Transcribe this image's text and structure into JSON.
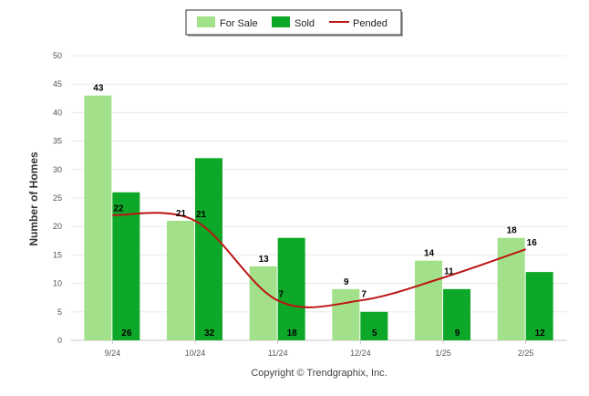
{
  "chart_data": {
    "type": "bar",
    "title": "",
    "xlabel": "",
    "ylabel": "Number of Homes",
    "ylim": [
      0,
      50
    ],
    "yticks": [
      0,
      5,
      10,
      15,
      20,
      25,
      30,
      35,
      40,
      45,
      50
    ],
    "grid": true,
    "legend_position": "top-center",
    "categories": [
      "9/24",
      "10/24",
      "11/24",
      "12/24",
      "1/25",
      "2/25"
    ],
    "series": [
      {
        "name": "For Sale",
        "kind": "bar",
        "color": "#a3e08a",
        "values": [
          43,
          21,
          13,
          9,
          14,
          18
        ]
      },
      {
        "name": "Sold",
        "kind": "bar",
        "color": "#0ea829",
        "values": [
          26,
          32,
          18,
          5,
          9,
          12
        ]
      },
      {
        "name": "Pended",
        "kind": "line",
        "color": "#bb1414",
        "values": [
          22,
          21,
          7,
          7,
          11,
          16
        ]
      }
    ],
    "credit": "Copyright © Trendgraphix, Inc."
  }
}
